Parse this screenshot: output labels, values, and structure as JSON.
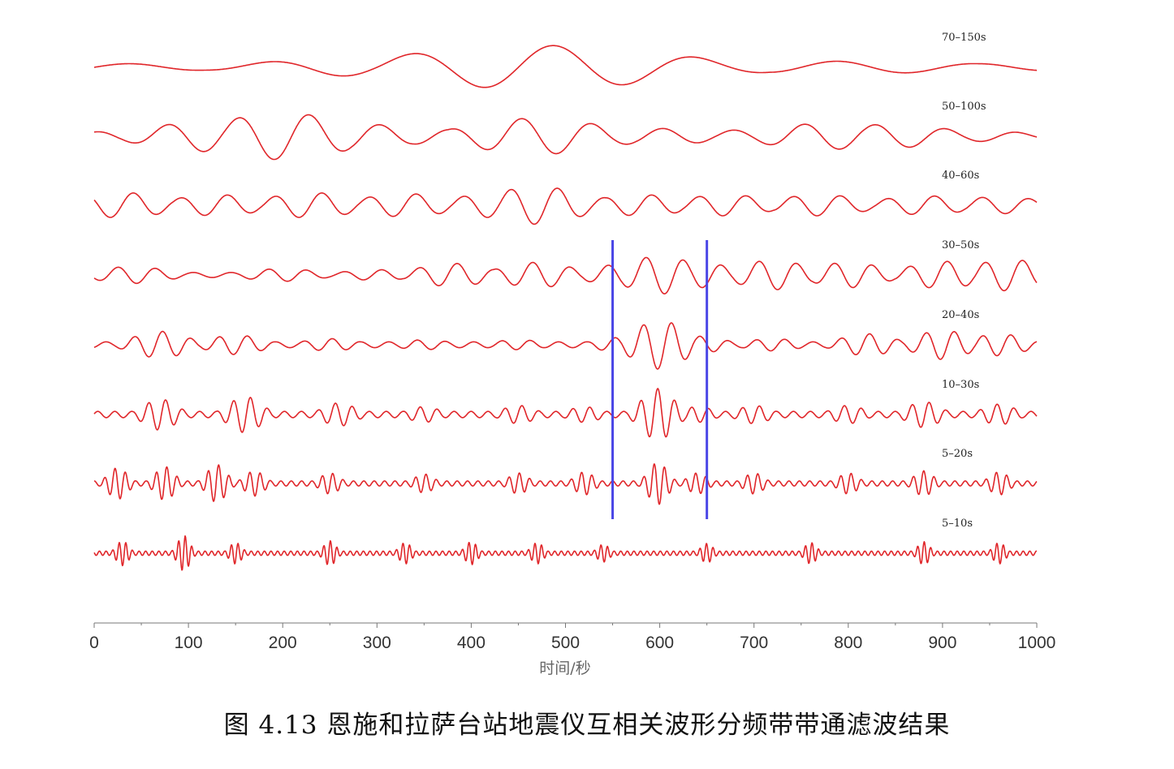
{
  "chart_data": {
    "type": "line",
    "xlabel": "时间/秒",
    "xlim": [
      0,
      1000
    ],
    "xticks": [
      0,
      100,
      200,
      300,
      400,
      500,
      600,
      700,
      800,
      900,
      1000
    ],
    "markers": [
      550,
      650
    ],
    "series": [
      {
        "name": "70–150s",
        "period": 150,
        "peaks": [
          [
            20,
            0.15
          ],
          [
            130,
            0.12
          ],
          [
            205,
            0.1
          ],
          [
            260,
            0.2
          ],
          [
            330,
            0.4
          ],
          [
            400,
            0.3
          ],
          [
            470,
            0.9
          ],
          [
            535,
            0.5
          ],
          [
            600,
            0.3
          ],
          [
            700,
            0.2
          ],
          [
            800,
            0.25
          ],
          [
            880,
            0.12
          ],
          [
            960,
            0.15
          ]
        ]
      },
      {
        "name": "50–100s",
        "period": 75,
        "peaks": [
          [
            40,
            0.2
          ],
          [
            130,
            0.6
          ],
          [
            200,
            0.9
          ],
          [
            270,
            0.5
          ],
          [
            340,
            0.3
          ],
          [
            410,
            0.2
          ],
          [
            470,
            0.7
          ],
          [
            530,
            0.35
          ],
          [
            600,
            0.3
          ],
          [
            700,
            0.25
          ],
          [
            780,
            0.5
          ],
          [
            840,
            0.45
          ],
          [
            930,
            0.2
          ]
        ]
      },
      {
        "name": "40–60s",
        "period": 50,
        "peaks": [
          [
            30,
            0.6
          ],
          [
            130,
            0.5
          ],
          [
            230,
            0.6
          ],
          [
            330,
            0.55
          ],
          [
            430,
            0.6
          ],
          [
            470,
            0.9
          ],
          [
            520,
            0.4
          ],
          [
            580,
            0.5
          ],
          [
            670,
            0.5
          ],
          [
            770,
            0.5
          ],
          [
            880,
            0.45
          ],
          [
            960,
            0.4
          ]
        ]
      },
      {
        "name": "30–50s",
        "period": 40,
        "peaks": [
          [
            40,
            0.4
          ],
          [
            200,
            0.3
          ],
          [
            300,
            0.25
          ],
          [
            380,
            0.55
          ],
          [
            470,
            0.6
          ],
          [
            560,
            0.5
          ],
          [
            600,
            0.9
          ],
          [
            640,
            0.6
          ],
          [
            720,
            0.7
          ],
          [
            800,
            0.6
          ],
          [
            900,
            0.65
          ],
          [
            970,
            0.75
          ]
        ]
      },
      {
        "name": "20–40s",
        "period": 30,
        "peaks": [
          [
            70,
            0.55
          ],
          [
            150,
            0.4
          ],
          [
            250,
            0.25
          ],
          [
            350,
            0.2
          ],
          [
            450,
            0.2
          ],
          [
            560,
            0.3
          ],
          [
            600,
            1.0
          ],
          [
            640,
            0.35
          ],
          [
            720,
            0.25
          ],
          [
            820,
            0.45
          ],
          [
            900,
            0.6
          ],
          [
            960,
            0.45
          ]
        ]
      },
      {
        "name": "10–30s",
        "period": 18,
        "peaks": [
          [
            70,
            0.6
          ],
          [
            160,
            0.7
          ],
          [
            260,
            0.45
          ],
          [
            350,
            0.3
          ],
          [
            450,
            0.35
          ],
          [
            520,
            0.3
          ],
          [
            598,
            1.0
          ],
          [
            640,
            0.3
          ],
          [
            700,
            0.35
          ],
          [
            800,
            0.35
          ],
          [
            880,
            0.5
          ],
          [
            960,
            0.4
          ]
        ]
      },
      {
        "name": "5–20s",
        "period": 11,
        "peaks": [
          [
            25,
            0.75
          ],
          [
            75,
            0.8
          ],
          [
            130,
            0.9
          ],
          [
            170,
            0.6
          ],
          [
            250,
            0.5
          ],
          [
            350,
            0.45
          ],
          [
            450,
            0.5
          ],
          [
            520,
            0.55
          ],
          [
            598,
            1.0
          ],
          [
            640,
            0.5
          ],
          [
            700,
            0.5
          ],
          [
            800,
            0.5
          ],
          [
            880,
            0.6
          ],
          [
            960,
            0.55
          ]
        ]
      },
      {
        "name": "5–10s",
        "period": 7,
        "peaks": [
          [
            30,
            0.7
          ],
          [
            95,
            1.0
          ],
          [
            150,
            0.6
          ],
          [
            250,
            0.7
          ],
          [
            330,
            0.6
          ],
          [
            400,
            0.65
          ],
          [
            470,
            0.6
          ],
          [
            540,
            0.5
          ],
          [
            650,
            0.55
          ],
          [
            760,
            0.6
          ],
          [
            880,
            0.65
          ],
          [
            960,
            0.6
          ]
        ]
      }
    ]
  },
  "caption": "图 4.13 恩施和拉萨台站地震仪互相关波形分频带带通滤波结果"
}
